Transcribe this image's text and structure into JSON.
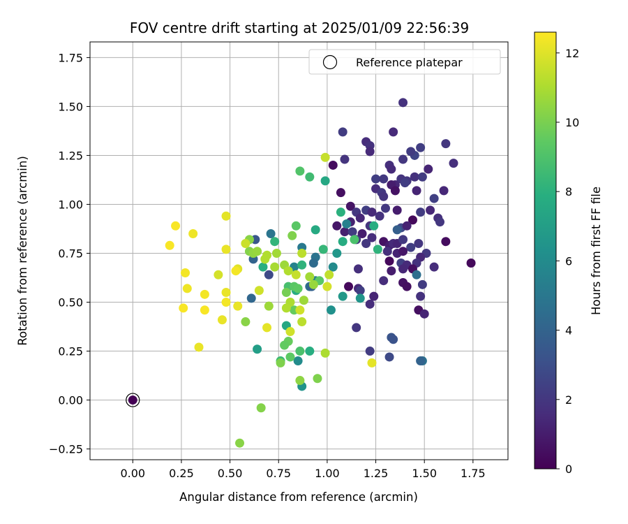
{
  "chart_data": {
    "type": "scatter",
    "title": "FOV centre drift starting at 2025/01/09 22:56:39",
    "xlabel": "Angular distance from reference (arcmin)",
    "ylabel": "Rotation from reference (arcmin)",
    "xlim": [
      -0.22,
      1.93
    ],
    "ylim": [
      -0.305,
      1.83
    ],
    "xticks": [
      "0.00",
      "0.25",
      "0.50",
      "0.75",
      "1.00",
      "1.25",
      "1.50",
      "1.75"
    ],
    "yticks": [
      "−0.25",
      "0.00",
      "0.25",
      "0.50",
      "0.75",
      "1.00",
      "1.25",
      "1.50",
      "1.75"
    ],
    "grid": true,
    "legend": {
      "position": "top-right",
      "label": "Reference platepar"
    },
    "reference_point": {
      "x": 0.0,
      "y": 0.0,
      "c": 0
    },
    "colorbar": {
      "label": "Hours from first FF file",
      "range": [
        0,
        12.6
      ],
      "ticks": [
        "0",
        "2",
        "4",
        "6",
        "8",
        "10",
        "12"
      ],
      "colormap": "viridis"
    },
    "points": [
      [
        1.39,
        1.52,
        1.8
      ],
      [
        1.34,
        1.37,
        1.5
      ],
      [
        1.08,
        1.37,
        2.2
      ],
      [
        1.2,
        1.32,
        1.6
      ],
      [
        1.22,
        1.3,
        1.8
      ],
      [
        1.61,
        1.31,
        2.0
      ],
      [
        1.65,
        1.21,
        1.7
      ],
      [
        1.48,
        1.29,
        2.3
      ],
      [
        1.45,
        1.25,
        2.6
      ],
      [
        1.43,
        1.27,
        2.2
      ],
      [
        1.22,
        1.27,
        1.5
      ],
      [
        1.39,
        1.23,
        2.0
      ],
      [
        1.03,
        1.2,
        0.4
      ],
      [
        1.09,
        1.23,
        1.9
      ],
      [
        1.32,
        1.2,
        1.7
      ],
      [
        1.33,
        1.18,
        1.5
      ],
      [
        1.52,
        1.18,
        1.3
      ],
      [
        1.25,
        1.13,
        2.3
      ],
      [
        1.29,
        1.13,
        2.1
      ],
      [
        1.38,
        1.13,
        1.9
      ],
      [
        1.41,
        1.12,
        2.0
      ],
      [
        1.45,
        1.14,
        1.8
      ],
      [
        1.49,
        1.14,
        2.2
      ],
      [
        1.4,
        1.11,
        2.3
      ],
      [
        1.35,
        1.1,
        1.4
      ],
      [
        1.33,
        1.1,
        1.0
      ],
      [
        1.25,
        1.08,
        1.6
      ],
      [
        1.28,
        1.06,
        2.1
      ],
      [
        1.35,
        1.07,
        0.6
      ],
      [
        1.46,
        1.07,
        1.3
      ],
      [
        1.6,
        1.07,
        1.4
      ],
      [
        1.07,
        1.06,
        0.5
      ],
      [
        1.29,
        1.04,
        1.9
      ],
      [
        1.55,
        1.03,
        2.4
      ],
      [
        1.12,
        0.99,
        0.7
      ],
      [
        1.15,
        0.96,
        2.0
      ],
      [
        1.2,
        0.97,
        2.3
      ],
      [
        1.23,
        0.96,
        1.5
      ],
      [
        1.27,
        0.94,
        1.8
      ],
      [
        1.3,
        0.98,
        2.1
      ],
      [
        1.36,
        0.97,
        1.0
      ],
      [
        1.48,
        0.96,
        2.2
      ],
      [
        1.53,
        0.97,
        1.4
      ],
      [
        1.57,
        0.93,
        1.7
      ],
      [
        1.58,
        0.91,
        2.0
      ],
      [
        1.12,
        0.91,
        1.2
      ],
      [
        1.17,
        0.93,
        1.4
      ],
      [
        1.44,
        0.92,
        0.3
      ],
      [
        1.05,
        0.89,
        0.8
      ],
      [
        1.09,
        0.86,
        1.1
      ],
      [
        1.13,
        0.86,
        2.2
      ],
      [
        1.18,
        0.85,
        1.0
      ],
      [
        1.22,
        0.89,
        1.9
      ],
      [
        1.38,
        0.88,
        2.8
      ],
      [
        1.41,
        0.89,
        1.2
      ],
      [
        1.23,
        0.83,
        1.6
      ],
      [
        1.15,
        0.82,
        1.9
      ],
      [
        1.2,
        0.8,
        2.0
      ],
      [
        1.29,
        0.81,
        0.6
      ],
      [
        1.32,
        0.79,
        1.0
      ],
      [
        1.34,
        0.8,
        1.5
      ],
      [
        1.36,
        0.8,
        1.3
      ],
      [
        1.39,
        0.82,
        2.1
      ],
      [
        1.43,
        0.78,
        2.3
      ],
      [
        1.47,
        0.8,
        2.0
      ],
      [
        1.61,
        0.81,
        0.4
      ],
      [
        1.31,
        0.76,
        1.7
      ],
      [
        1.36,
        0.75,
        1.2
      ],
      [
        1.39,
        0.76,
        0.8
      ],
      [
        1.51,
        0.75,
        2.1
      ],
      [
        1.48,
        0.73,
        1.4
      ],
      [
        1.32,
        0.71,
        0.3
      ],
      [
        1.38,
        0.7,
        2.4
      ],
      [
        1.41,
        0.69,
        1.5
      ],
      [
        1.46,
        0.7,
        1.8
      ],
      [
        1.55,
        0.68,
        1.6
      ],
      [
        1.74,
        0.7,
        0.3
      ],
      [
        1.16,
        0.67,
        1.7
      ],
      [
        1.33,
        0.66,
        1.0
      ],
      [
        1.39,
        0.67,
        1.4
      ],
      [
        1.44,
        0.67,
        0.5
      ],
      [
        1.29,
        0.61,
        1.6
      ],
      [
        1.39,
        0.6,
        0.6
      ],
      [
        1.41,
        0.58,
        0.5
      ],
      [
        1.49,
        0.59,
        2.2
      ],
      [
        1.11,
        0.58,
        0.3
      ],
      [
        1.16,
        0.57,
        1.4
      ],
      [
        1.17,
        0.56,
        2.3
      ],
      [
        1.24,
        0.53,
        1.3
      ],
      [
        1.48,
        0.53,
        1.8
      ],
      [
        1.22,
        0.49,
        1.6
      ],
      [
        1.47,
        0.46,
        0.5
      ],
      [
        1.5,
        0.44,
        1.3
      ],
      [
        1.15,
        0.37,
        2.0
      ],
      [
        1.33,
        0.32,
        3.3
      ],
      [
        1.34,
        0.31,
        3.2
      ],
      [
        1.22,
        0.25,
        2.2
      ],
      [
        1.32,
        0.22,
        2.8
      ],
      [
        1.49,
        0.2,
        4.7
      ],
      [
        1.48,
        0.2,
        4.0
      ],
      [
        1.46,
        0.64,
        4.6
      ],
      [
        1.36,
        0.87,
        3.8
      ],
      [
        1.1,
        0.9,
        5.5
      ],
      [
        1.05,
        0.75,
        6.6
      ],
      [
        1.03,
        0.68,
        6.0
      ],
      [
        1.02,
        0.46,
        6.3
      ],
      [
        1.08,
        0.53,
        6.7
      ],
      [
        1.17,
        0.52,
        6.5
      ],
      [
        1.08,
        0.81,
        7.7
      ],
      [
        1.07,
        0.96,
        8.0
      ],
      [
        0.99,
        1.12,
        7.5
      ],
      [
        1.24,
        0.89,
        7.8
      ],
      [
        1.26,
        0.77,
        8.1
      ],
      [
        1.14,
        0.82,
        8.9
      ],
      [
        0.94,
        0.73,
        4.8
      ],
      [
        0.93,
        0.7,
        4.4
      ],
      [
        0.94,
        0.61,
        5.3
      ],
      [
        0.91,
        0.58,
        4.5
      ],
      [
        0.92,
        0.58,
        3.9
      ],
      [
        0.87,
        0.78,
        5.1
      ],
      [
        0.83,
        0.68,
        5.6
      ],
      [
        0.71,
        0.85,
        4.9
      ],
      [
        0.7,
        0.64,
        2.8
      ],
      [
        0.63,
        0.82,
        3.4
      ],
      [
        0.62,
        0.72,
        4.0
      ],
      [
        0.61,
        0.52,
        4.2
      ],
      [
        0.85,
        0.2,
        6.0
      ],
      [
        0.87,
        0.07,
        6.4
      ],
      [
        0.94,
        0.87,
        7.6
      ],
      [
        0.98,
        0.77,
        8.3
      ],
      [
        0.87,
        0.69,
        8.1
      ],
      [
        0.79,
        0.38,
        7.5
      ],
      [
        0.8,
        0.58,
        8.8
      ],
      [
        0.84,
        0.56,
        7.7
      ],
      [
        0.73,
        0.81,
        8.2
      ],
      [
        0.67,
        0.68,
        7.9
      ],
      [
        0.64,
        0.26,
        7.0
      ],
      [
        0.86,
        0.25,
        8.9
      ],
      [
        0.91,
        0.25,
        7.8
      ],
      [
        0.76,
        0.2,
        8.5
      ],
      [
        0.91,
        1.14,
        8.6
      ],
      [
        0.86,
        1.17,
        9.1
      ],
      [
        0.84,
        0.89,
        9.3
      ],
      [
        0.82,
        0.84,
        10.1
      ],
      [
        0.96,
        0.61,
        9.3
      ],
      [
        0.83,
        0.58,
        9.3
      ],
      [
        0.85,
        0.57,
        9.4
      ],
      [
        0.79,
        0.55,
        9.9
      ],
      [
        0.83,
        0.46,
        9.6
      ],
      [
        0.8,
        0.3,
        9.6
      ],
      [
        0.81,
        0.22,
        9.4
      ],
      [
        0.78,
        0.28,
        9.5
      ],
      [
        0.76,
        0.19,
        10.1
      ],
      [
        0.95,
        0.11,
        10.1
      ],
      [
        0.86,
        0.1,
        10.4
      ],
      [
        0.66,
        -0.04,
        10.2
      ],
      [
        0.55,
        -0.22,
        10.3
      ],
      [
        0.58,
        0.4,
        10.3
      ],
      [
        0.6,
        0.82,
        10.3
      ],
      [
        0.6,
        0.76,
        10.2
      ],
      [
        0.62,
        0.75,
        10.5
      ],
      [
        0.64,
        0.76,
        10.6
      ],
      [
        0.68,
        0.72,
        11.1
      ],
      [
        0.69,
        0.74,
        11.1
      ],
      [
        0.74,
        0.75,
        10.8
      ],
      [
        0.73,
        0.68,
        10.9
      ],
      [
        0.7,
        0.48,
        10.7
      ],
      [
        0.78,
        0.69,
        10.7
      ],
      [
        0.8,
        0.66,
        11.1
      ],
      [
        0.87,
        0.75,
        11.3
      ],
      [
        0.91,
        0.63,
        10.8
      ],
      [
        0.93,
        0.59,
        10.6
      ],
      [
        0.99,
        0.24,
        11.0
      ],
      [
        0.99,
        1.24,
        11.5
      ],
      [
        1.01,
        0.64,
        11.4
      ],
      [
        1.0,
        0.58,
        11.8
      ],
      [
        0.88,
        0.51,
        10.7
      ],
      [
        0.81,
        0.5,
        11.0
      ],
      [
        0.79,
        0.47,
        11.1
      ],
      [
        0.86,
        0.46,
        11.7
      ],
      [
        0.87,
        0.4,
        11.3
      ],
      [
        0.81,
        0.35,
        11.7
      ],
      [
        0.84,
        0.64,
        11.5
      ],
      [
        0.65,
        0.56,
        11.7
      ],
      [
        0.69,
        0.37,
        12.1
      ],
      [
        0.54,
        0.67,
        12.0
      ],
      [
        0.53,
        0.66,
        12.4
      ],
      [
        0.58,
        0.8,
        11.6
      ],
      [
        0.48,
        0.77,
        12.2
      ],
      [
        0.44,
        0.64,
        11.8
      ],
      [
        0.48,
        0.94,
        12.1
      ],
      [
        0.48,
        0.55,
        12.2
      ],
      [
        0.48,
        0.5,
        12.4
      ],
      [
        0.54,
        0.48,
        12.2
      ],
      [
        0.46,
        0.41,
        12.2
      ],
      [
        0.31,
        0.85,
        12.3
      ],
      [
        0.22,
        0.89,
        12.5
      ],
      [
        0.19,
        0.79,
        12.5
      ],
      [
        0.27,
        0.65,
        12.4
      ],
      [
        0.28,
        0.57,
        12.3
      ],
      [
        0.26,
        0.47,
        12.5
      ],
      [
        0.37,
        0.54,
        12.4
      ],
      [
        0.37,
        0.46,
        12.5
      ],
      [
        0.34,
        0.27,
        12.2
      ],
      [
        1.23,
        0.19,
        12.1
      ]
    ]
  }
}
